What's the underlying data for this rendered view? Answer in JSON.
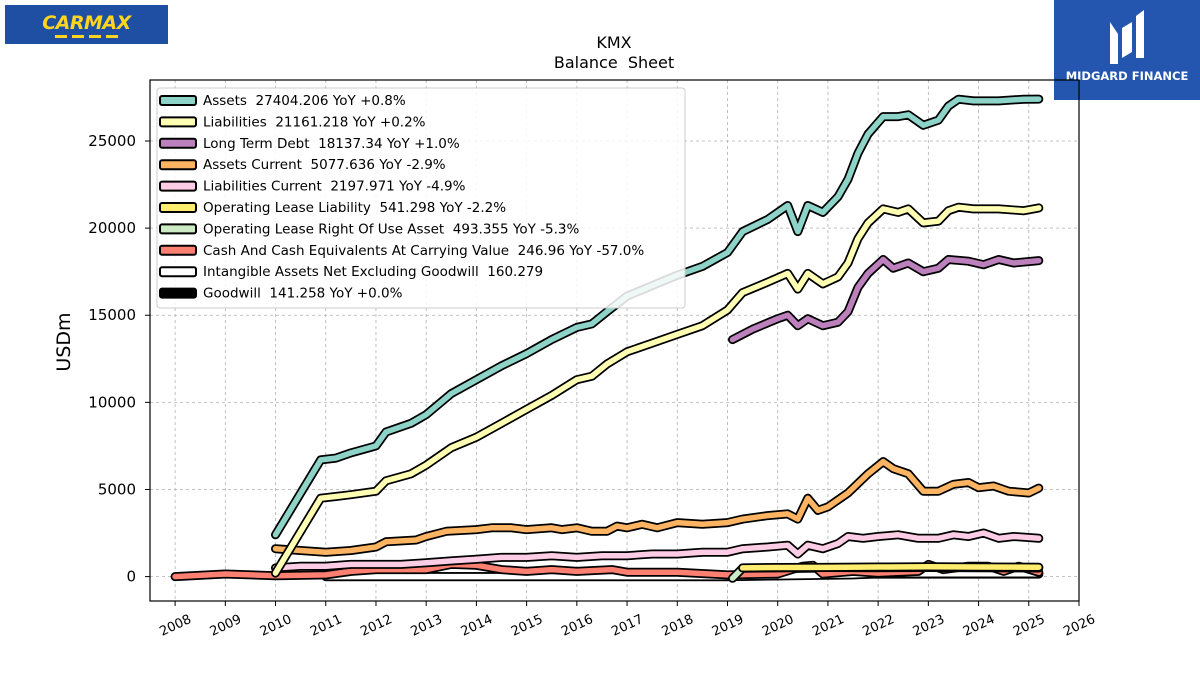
{
  "logos": {
    "left": {
      "text": "CARMAX"
    },
    "right": {
      "text": "MIDGARD FINANCE"
    }
  },
  "chart_data": {
    "type": "line",
    "title": "KMX",
    "subtitle": "Balance  Sheet",
    "ylabel": "USDm",
    "xlabel": "",
    "xlim": [
      2007.5,
      2026.0
    ],
    "ylim": [
      -1400,
      28500
    ],
    "x_ticks": [
      2008,
      2009,
      2010,
      2011,
      2012,
      2013,
      2014,
      2015,
      2016,
      2017,
      2018,
      2019,
      2020,
      2021,
      2022,
      2023,
      2024,
      2025,
      2026
    ],
    "y_ticks": [
      0,
      5000,
      10000,
      15000,
      20000,
      25000
    ],
    "grid": true,
    "legend_position": "top-left",
    "series": [
      {
        "name": "Assets  27404.206 YoY +0.8%",
        "color": "#8dd3c7",
        "points": [
          [
            2010.0,
            2400
          ],
          [
            2010.9,
            6700
          ],
          [
            2011.2,
            6800
          ],
          [
            2011.5,
            7100
          ],
          [
            2012.0,
            7500
          ],
          [
            2012.2,
            8300
          ],
          [
            2012.7,
            8800
          ],
          [
            2013.0,
            9300
          ],
          [
            2013.5,
            10500
          ],
          [
            2014.0,
            11300
          ],
          [
            2014.5,
            12100
          ],
          [
            2015.0,
            12800
          ],
          [
            2015.5,
            13600
          ],
          [
            2016.0,
            14300
          ],
          [
            2016.3,
            14500
          ],
          [
            2016.6,
            15200
          ],
          [
            2017.0,
            16100
          ],
          [
            2017.5,
            16700
          ],
          [
            2018.0,
            17300
          ],
          [
            2018.5,
            17800
          ],
          [
            2019.0,
            18600
          ],
          [
            2019.3,
            19800
          ],
          [
            2019.8,
            20500
          ],
          [
            2020.2,
            21300
          ],
          [
            2020.4,
            19800
          ],
          [
            2020.6,
            21300
          ],
          [
            2020.9,
            20900
          ],
          [
            2021.2,
            21800
          ],
          [
            2021.4,
            22800
          ],
          [
            2021.6,
            24300
          ],
          [
            2021.8,
            25400
          ],
          [
            2022.1,
            26400
          ],
          [
            2022.4,
            26400
          ],
          [
            2022.6,
            26500
          ],
          [
            2022.9,
            25900
          ],
          [
            2023.2,
            26200
          ],
          [
            2023.4,
            27000
          ],
          [
            2023.6,
            27400
          ],
          [
            2023.9,
            27300
          ],
          [
            2024.4,
            27300
          ],
          [
            2024.9,
            27400
          ],
          [
            2025.2,
            27404
          ]
        ]
      },
      {
        "name": "Liabilities  21161.218 YoY +0.2%",
        "color": "#ffffb3",
        "points": [
          [
            2010.0,
            200
          ],
          [
            2010.9,
            4500
          ],
          [
            2011.2,
            4600
          ],
          [
            2011.5,
            4700
          ],
          [
            2012.0,
            4900
          ],
          [
            2012.2,
            5500
          ],
          [
            2012.7,
            5900
          ],
          [
            2013.0,
            6400
          ],
          [
            2013.5,
            7400
          ],
          [
            2014.0,
            8000
          ],
          [
            2014.5,
            8800
          ],
          [
            2015.0,
            9600
          ],
          [
            2015.5,
            10400
          ],
          [
            2016.0,
            11300
          ],
          [
            2016.3,
            11500
          ],
          [
            2016.6,
            12200
          ],
          [
            2017.0,
            12900
          ],
          [
            2017.5,
            13400
          ],
          [
            2018.0,
            13900
          ],
          [
            2018.5,
            14400
          ],
          [
            2019.0,
            15300
          ],
          [
            2019.3,
            16300
          ],
          [
            2019.8,
            16900
          ],
          [
            2020.2,
            17400
          ],
          [
            2020.4,
            16500
          ],
          [
            2020.6,
            17400
          ],
          [
            2020.9,
            16800
          ],
          [
            2021.2,
            17200
          ],
          [
            2021.4,
            18000
          ],
          [
            2021.6,
            19400
          ],
          [
            2021.8,
            20300
          ],
          [
            2022.1,
            21100
          ],
          [
            2022.4,
            20900
          ],
          [
            2022.6,
            21100
          ],
          [
            2022.9,
            20300
          ],
          [
            2023.2,
            20400
          ],
          [
            2023.4,
            21000
          ],
          [
            2023.6,
            21200
          ],
          [
            2023.9,
            21100
          ],
          [
            2024.4,
            21100
          ],
          [
            2024.9,
            21000
          ],
          [
            2025.2,
            21161
          ]
        ]
      },
      {
        "name": "Long Term Debt  18137.34 YoY +1.0%",
        "color": "#bc80bd",
        "points": [
          [
            2019.1,
            13600
          ],
          [
            2019.5,
            14200
          ],
          [
            2020.0,
            14800
          ],
          [
            2020.2,
            15000
          ],
          [
            2020.4,
            14400
          ],
          [
            2020.6,
            14800
          ],
          [
            2020.9,
            14400
          ],
          [
            2021.2,
            14600
          ],
          [
            2021.4,
            15200
          ],
          [
            2021.6,
            16600
          ],
          [
            2021.8,
            17400
          ],
          [
            2022.1,
            18200
          ],
          [
            2022.3,
            17700
          ],
          [
            2022.6,
            18000
          ],
          [
            2022.9,
            17500
          ],
          [
            2023.2,
            17700
          ],
          [
            2023.4,
            18200
          ],
          [
            2023.8,
            18100
          ],
          [
            2024.1,
            17900
          ],
          [
            2024.4,
            18200
          ],
          [
            2024.7,
            18000
          ],
          [
            2025.2,
            18137
          ]
        ]
      },
      {
        "name": "Assets Current  5077.636 YoY -2.9%",
        "color": "#fdb462",
        "points": [
          [
            2010.0,
            1600
          ],
          [
            2010.5,
            1500
          ],
          [
            2011.0,
            1400
          ],
          [
            2011.5,
            1500
          ],
          [
            2012.0,
            1700
          ],
          [
            2012.2,
            2000
          ],
          [
            2012.8,
            2100
          ],
          [
            2013.0,
            2300
          ],
          [
            2013.4,
            2600
          ],
          [
            2014.0,
            2700
          ],
          [
            2014.3,
            2800
          ],
          [
            2014.7,
            2800
          ],
          [
            2015.0,
            2700
          ],
          [
            2015.5,
            2800
          ],
          [
            2015.7,
            2700
          ],
          [
            2016.0,
            2800
          ],
          [
            2016.3,
            2600
          ],
          [
            2016.6,
            2600
          ],
          [
            2016.8,
            2900
          ],
          [
            2017.0,
            2800
          ],
          [
            2017.3,
            3000
          ],
          [
            2017.6,
            2800
          ],
          [
            2018.0,
            3100
          ],
          [
            2018.5,
            3000
          ],
          [
            2019.0,
            3100
          ],
          [
            2019.3,
            3300
          ],
          [
            2019.8,
            3500
          ],
          [
            2020.2,
            3600
          ],
          [
            2020.4,
            3300
          ],
          [
            2020.6,
            4500
          ],
          [
            2020.8,
            3800
          ],
          [
            2021.0,
            4000
          ],
          [
            2021.4,
            4800
          ],
          [
            2021.8,
            5900
          ],
          [
            2022.1,
            6600
          ],
          [
            2022.3,
            6200
          ],
          [
            2022.6,
            5900
          ],
          [
            2022.9,
            4900
          ],
          [
            2023.2,
            4900
          ],
          [
            2023.5,
            5300
          ],
          [
            2023.8,
            5400
          ],
          [
            2024.0,
            5100
          ],
          [
            2024.3,
            5200
          ],
          [
            2024.6,
            4900
          ],
          [
            2025.0,
            4800
          ],
          [
            2025.2,
            5077
          ]
        ]
      },
      {
        "name": "Liabilities Current  2197.971 YoY -4.9%",
        "color": "#fccde5",
        "points": [
          [
            2010.0,
            500
          ],
          [
            2010.5,
            600
          ],
          [
            2011.0,
            600
          ],
          [
            2011.5,
            700
          ],
          [
            2012.0,
            700
          ],
          [
            2012.5,
            700
          ],
          [
            2013.0,
            800
          ],
          [
            2013.5,
            900
          ],
          [
            2014.0,
            1000
          ],
          [
            2014.5,
            1100
          ],
          [
            2015.0,
            1100
          ],
          [
            2015.5,
            1200
          ],
          [
            2016.0,
            1100
          ],
          [
            2016.5,
            1200
          ],
          [
            2017.0,
            1200
          ],
          [
            2017.5,
            1300
          ],
          [
            2018.0,
            1300
          ],
          [
            2018.5,
            1400
          ],
          [
            2019.0,
            1400
          ],
          [
            2019.3,
            1600
          ],
          [
            2019.8,
            1700
          ],
          [
            2020.2,
            1800
          ],
          [
            2020.4,
            1300
          ],
          [
            2020.6,
            1800
          ],
          [
            2020.9,
            1600
          ],
          [
            2021.2,
            1900
          ],
          [
            2021.4,
            2300
          ],
          [
            2021.7,
            2200
          ],
          [
            2022.0,
            2300
          ],
          [
            2022.4,
            2400
          ],
          [
            2022.8,
            2200
          ],
          [
            2023.2,
            2200
          ],
          [
            2023.5,
            2400
          ],
          [
            2023.8,
            2300
          ],
          [
            2024.1,
            2500
          ],
          [
            2024.4,
            2200
          ],
          [
            2024.7,
            2300
          ],
          [
            2025.2,
            2198
          ]
        ]
      },
      {
        "name": "Operating Lease Liability  541.298 YoY -2.2%",
        "color": "#ffed6f",
        "points": [
          [
            2019.3,
            500
          ],
          [
            2020.0,
            520
          ],
          [
            2021.0,
            530
          ],
          [
            2022.0,
            550
          ],
          [
            2023.0,
            560
          ],
          [
            2024.0,
            550
          ],
          [
            2025.2,
            541
          ]
        ]
      },
      {
        "name": "Operating Lease Right Of Use Asset  493.355 YoY -5.3%",
        "color": "#ccebc5",
        "points": [
          [
            2019.1,
            -100
          ],
          [
            2019.3,
            480
          ],
          [
            2020.0,
            500
          ],
          [
            2021.0,
            520
          ],
          [
            2022.0,
            510
          ],
          [
            2023.0,
            520
          ],
          [
            2024.0,
            510
          ],
          [
            2025.2,
            493
          ]
        ]
      },
      {
        "name": "Cash And Cash Equivalents At Carrying Value  246.96 YoY -57.0%",
        "color": "#fb8072",
        "points": [
          [
            2008.0,
            0
          ],
          [
            2009.0,
            150
          ],
          [
            2010.0,
            50
          ],
          [
            2011.0,
            100
          ],
          [
            2011.5,
            300
          ],
          [
            2012.0,
            400
          ],
          [
            2013.0,
            400
          ],
          [
            2013.5,
            700
          ],
          [
            2014.0,
            650
          ],
          [
            2014.5,
            400
          ],
          [
            2015.0,
            300
          ],
          [
            2015.5,
            400
          ],
          [
            2016.0,
            300
          ],
          [
            2016.7,
            400
          ],
          [
            2017.0,
            250
          ],
          [
            2018.0,
            250
          ],
          [
            2019.0,
            100
          ],
          [
            2020.0,
            150
          ],
          [
            2020.5,
            600
          ],
          [
            2020.7,
            650
          ],
          [
            2020.9,
            150
          ],
          [
            2021.5,
            300
          ],
          [
            2022.0,
            200
          ],
          [
            2022.8,
            300
          ],
          [
            2023.0,
            700
          ],
          [
            2023.3,
            400
          ],
          [
            2023.8,
            600
          ],
          [
            2024.2,
            600
          ],
          [
            2024.5,
            300
          ],
          [
            2024.8,
            600
          ],
          [
            2025.2,
            247
          ]
        ]
      },
      {
        "name": "Intangible Assets Net Excluding Goodwill  160.279",
        "color": "#ffffff",
        "points": [
          [
            2011.0,
            0
          ],
          [
            2019.0,
            0
          ],
          [
            2021.5,
            100
          ],
          [
            2022.0,
            160
          ],
          [
            2025.2,
            160
          ]
        ]
      },
      {
        "name": "Goodwill  141.258 YoY +0.0%",
        "color": "#000000",
        "points": [
          [
            2011.0,
            0
          ],
          [
            2019.0,
            0
          ],
          [
            2021.5,
            140
          ],
          [
            2022.0,
            141
          ],
          [
            2025.2,
            141
          ]
        ]
      }
    ]
  }
}
